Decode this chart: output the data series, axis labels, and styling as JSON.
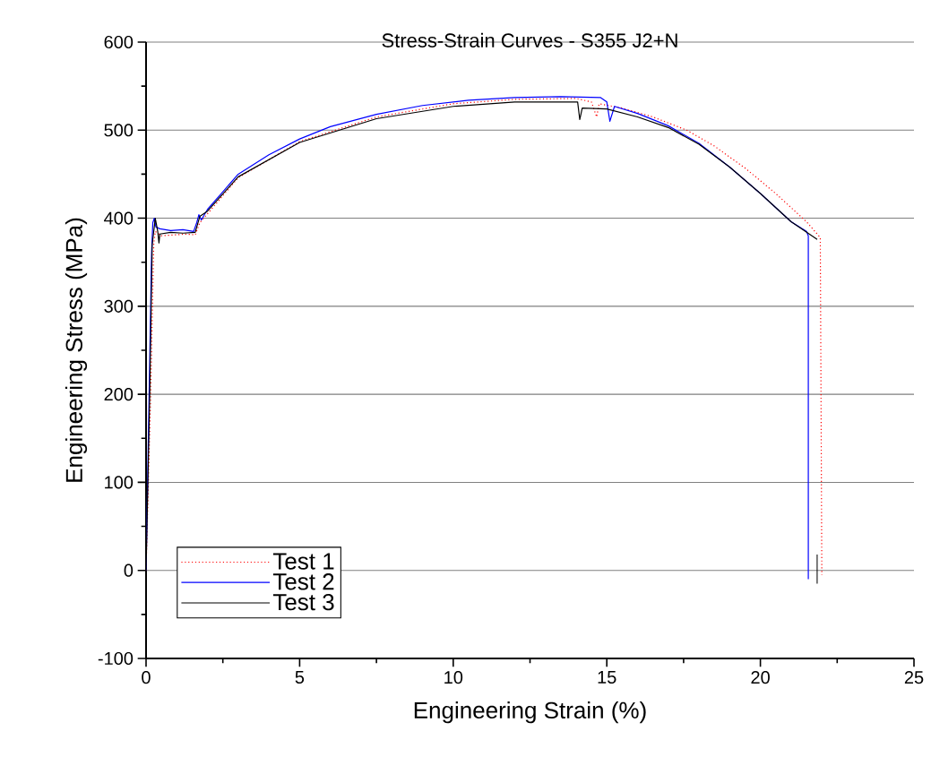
{
  "chart_data": {
    "type": "line",
    "title": "Stress-Strain Curves - S355 J2+N",
    "xlabel": "Engineering Strain (%)",
    "ylabel": "Engineering Stress (MPa)",
    "xlim": [
      0,
      25
    ],
    "ylim": [
      -100,
      600
    ],
    "xticks": [
      0,
      5,
      10,
      15,
      20,
      25
    ],
    "yticks": [
      -100,
      0,
      100,
      200,
      300,
      400,
      500,
      600
    ],
    "grid": "y",
    "legend": "bottom left",
    "marker": "none",
    "series": [
      {
        "name": "Test 1",
        "color": "#ff0000",
        "line_style": "dotted",
        "x": [
          0,
          0.15,
          0.25,
          0.3,
          0.5,
          0.9,
          1.3,
          1.6,
          1.75,
          2,
          3,
          5,
          7.5,
          10,
          12,
          14,
          14.5,
          14.67,
          14.75,
          15.5,
          16.5,
          17.6,
          18.5,
          19.5,
          20.5,
          21.5,
          21.95,
          22.0
        ],
        "values": [
          0,
          200,
          370,
          385,
          380,
          381,
          382,
          381,
          395,
          405,
          446,
          487,
          515,
          530,
          535,
          536,
          532,
          515,
          530,
          525,
          515,
          500,
          482,
          457,
          428,
          396,
          378,
          -5
        ]
      },
      {
        "name": "Test 2",
        "color": "#0000ff",
        "line_style": "solid",
        "x": [
          0,
          0.1,
          0.18,
          0.22,
          0.27,
          0.32,
          0.45,
          0.8,
          1.2,
          1.55,
          1.65,
          1.72,
          1.8,
          2,
          2.5,
          3,
          4,
          5,
          6,
          7.5,
          9,
          10.5,
          12,
          13.5,
          14.8,
          15.0,
          15.1,
          15.25,
          16,
          17,
          18,
          19,
          20,
          21,
          21.5,
          21.56,
          21.56
        ],
        "values": [
          0,
          200,
          360,
          395,
          400,
          390,
          388,
          386,
          387,
          385,
          395,
          404,
          398,
          410,
          430,
          450,
          472,
          490,
          504,
          518,
          528,
          534,
          537,
          538,
          537,
          532,
          510,
          527,
          519,
          505,
          485,
          458,
          428,
          396,
          385,
          380,
          -10
        ]
      },
      {
        "name": "Test 3",
        "color": "#000000",
        "line_style": "solid",
        "x": [
          0,
          0.12,
          0.2,
          0.3,
          0.38,
          0.42,
          0.45,
          0.8,
          1.2,
          1.6,
          1.75,
          2,
          3,
          5,
          7.5,
          10,
          12,
          14.05,
          14.12,
          14.2,
          15,
          16,
          17,
          18,
          19,
          20,
          21,
          21.85,
          null,
          21.85,
          21.85
        ],
        "values": [
          0,
          200,
          370,
          400,
          385,
          372,
          382,
          384,
          383,
          384,
          402,
          408,
          447,
          486,
          513,
          527,
          532,
          532,
          512,
          525,
          524,
          515,
          503,
          484,
          458,
          428,
          396,
          376,
          null,
          18,
          -15
        ]
      }
    ]
  }
}
